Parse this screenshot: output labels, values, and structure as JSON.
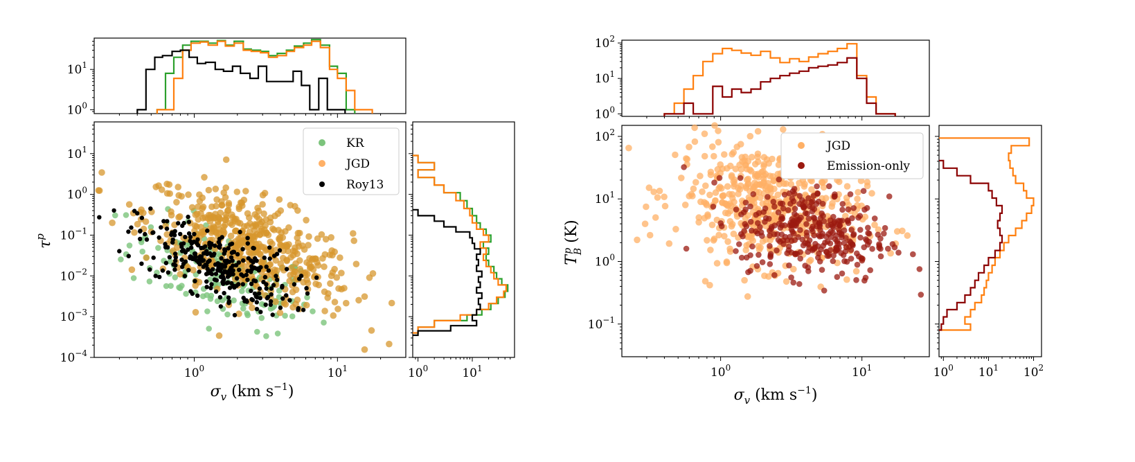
{
  "colors": {
    "KR": "#2ca02c",
    "JGD": "#ff7f0e",
    "Roy13": "#000000",
    "Emission-only": "#8b0000",
    "kr_point": "#7cc47c",
    "jgd_point": "#ffb066",
    "jgd_left_point": "#d7972d",
    "em_point": "#9b1a10"
  },
  "chart_data": [
    {
      "type": "scatter",
      "id": "left",
      "xlabel": "σv (km s⁻¹)",
      "xlabel_parts": {
        "sym": "σ",
        "sub": "v",
        "unit": " (km s",
        "sup": "−1",
        "close": ")"
      },
      "ylabel": "τᵖ",
      "ylabel_parts": {
        "sym": "τ",
        "sup": "p"
      },
      "xlim": [
        0.2,
        30
      ],
      "ylim": [
        0.0001,
        60
      ],
      "x_ticks": [
        {
          "v": 1,
          "label": "10",
          "exp": "0"
        },
        {
          "v": 10,
          "label": "10",
          "exp": "1"
        }
      ],
      "y_ticks": [
        {
          "v": 0.0001,
          "label": "10",
          "exp": "−4"
        },
        {
          "v": 0.001,
          "label": "10",
          "exp": "−3"
        },
        {
          "v": 0.01,
          "label": "10",
          "exp": "−2"
        },
        {
          "v": 0.1,
          "label": "10",
          "exp": "−1"
        },
        {
          "v": 1,
          "label": "10",
          "exp": "0"
        },
        {
          "v": 10,
          "label": "10",
          "exp": "1"
        }
      ],
      "legend_loc": "top-right",
      "legend": [
        "KR",
        "JGD",
        "Roy13"
      ],
      "series": [
        {
          "name": "KR",
          "n": 180,
          "cx": 1.6,
          "cy": 0.01,
          "sx": 0.55,
          "sy": 0.9
        },
        {
          "name": "JGD",
          "n": 520,
          "cx": 2.4,
          "cy": 0.05,
          "sx": 0.6,
          "sy": 1.0
        },
        {
          "name": "Roy13",
          "n": 300,
          "cx": 1.4,
          "cy": 0.02,
          "sx": 0.45,
          "sy": 0.7
        }
      ],
      "top_hist": {
        "ylim": [
          0.8,
          60
        ],
        "y_ticks": [
          {
            "v": 1,
            "label": "10",
            "exp": "0"
          },
          {
            "v": 10,
            "label": "10",
            "exp": "1"
          }
        ],
        "series": [
          {
            "name": "KR",
            "edges": [
              0.55,
              0.63,
              0.72,
              0.83,
              0.95,
              1.1,
              1.25,
              1.45,
              1.65,
              1.9,
              2.2,
              2.5,
              2.9,
              3.3,
              3.8,
              4.4,
              5.0,
              5.8,
              6.6,
              7.6,
              8.8,
              10.0,
              11.5,
              13.2
            ],
            "counts": [
              1,
              8,
              20,
              40,
              50,
              50,
              45,
              52,
              40,
              50,
              32,
              30,
              28,
              22,
              25,
              30,
              38,
              45,
              55,
              40,
              12,
              8,
              1
            ]
          },
          {
            "name": "JGD",
            "edges": [
              0.55,
              0.63,
              0.72,
              0.83,
              0.95,
              1.1,
              1.25,
              1.45,
              1.65,
              1.9,
              2.2,
              2.5,
              2.9,
              3.3,
              3.8,
              4.4,
              5.0,
              5.8,
              6.6,
              7.6,
              8.8,
              10.0,
              11.5,
              13.2,
              15.2,
              17.5
            ],
            "counts": [
              1,
              1,
              6,
              30,
              45,
              48,
              40,
              50,
              38,
              45,
              30,
              28,
              26,
              20,
              22,
              28,
              35,
              40,
              50,
              35,
              10,
              6,
              3,
              1,
              1
            ]
          },
          {
            "name": "Roy13",
            "edges": [
              0.4,
              0.46,
              0.53,
              0.6,
              0.7,
              0.8,
              0.92,
              1.05,
              1.2,
              1.4,
              1.6,
              1.85,
              2.1,
              2.45,
              2.8,
              3.2,
              3.7,
              4.25,
              4.9,
              5.6,
              6.4,
              7.4,
              8.5,
              9.8,
              11.3
            ],
            "counts": [
              1,
              10,
              20,
              22,
              28,
              30,
              20,
              14,
              15,
              10,
              9,
              12,
              8,
              6,
              12,
              5,
              5,
              5,
              9,
              4,
              1,
              6,
              1,
              1
            ]
          }
        ]
      },
      "right_hist": {
        "xlim": [
          0.8,
          60
        ],
        "x_ticks": [
          {
            "v": 1,
            "label": "10",
            "exp": "0"
          },
          {
            "v": 10,
            "label": "10",
            "exp": "1"
          }
        ],
        "series": [
          {
            "name": "KR",
            "edges": [
              0.0004,
              0.00055,
              0.0008,
              0.0011,
              0.0015,
              0.0021,
              0.003,
              0.0042,
              0.006,
              0.0085,
              0.012,
              0.017,
              0.024,
              0.034,
              0.048,
              0.068,
              0.1,
              0.14,
              0.2,
              0.3,
              0.45,
              0.7,
              1.1,
              1.7,
              2.6,
              4,
              6,
              9
            ],
            "counts": [
              1,
              2,
              8,
              15,
              22,
              30,
              40,
              45,
              35,
              28,
              25,
              20,
              18,
              20,
              16,
              22,
              18,
              14,
              12,
              10,
              8,
              6,
              3,
              2,
              1,
              2,
              1
            ]
          },
          {
            "name": "JGD",
            "edges": [
              0.0004,
              0.00055,
              0.0008,
              0.0011,
              0.0015,
              0.0021,
              0.003,
              0.0042,
              0.006,
              0.0085,
              0.012,
              0.017,
              0.024,
              0.034,
              0.048,
              0.068,
              0.1,
              0.14,
              0.2,
              0.3,
              0.45,
              0.7,
              1.1,
              1.7,
              2.6,
              4,
              6,
              9
            ],
            "counts": [
              1,
              2,
              6,
              12,
              20,
              28,
              38,
              42,
              30,
              25,
              22,
              18,
              16,
              18,
              14,
              20,
              16,
              12,
              10,
              9,
              7,
              5,
              3,
              2,
              1,
              2,
              1
            ]
          },
          {
            "name": "Roy13",
            "edges": [
              0.00035,
              0.00045,
              0.0006,
              0.0008,
              0.0011,
              0.0015,
              0.002,
              0.0028,
              0.0038,
              0.0052,
              0.007,
              0.0095,
              0.013,
              0.018,
              0.025,
              0.034,
              0.046,
              0.063,
              0.086,
              0.12,
              0.16,
              0.22,
              0.3,
              0.42
            ],
            "counts": [
              1,
              4,
              12,
              10,
              12,
              14,
              13,
              15,
              12,
              14,
              13,
              15,
              12,
              13,
              12,
              14,
              11,
              10,
              9,
              5,
              3,
              2,
              1
            ]
          }
        ]
      }
    },
    {
      "type": "scatter",
      "id": "right",
      "xlabel": "σv (km s⁻¹)",
      "xlabel_parts": {
        "sym": "σ",
        "sub": "v",
        "unit": " (km s",
        "sup": "−1",
        "close": ")"
      },
      "ylabel": "T_B^p (K)",
      "ylabel_parts": {
        "sym": "T",
        "sub": "B",
        "sup": "p",
        "unit": " (K)"
      },
      "xlim": [
        0.2,
        30
      ],
      "ylim": [
        0.03,
        150
      ],
      "x_ticks": [
        {
          "v": 1,
          "label": "10",
          "exp": "0"
        },
        {
          "v": 10,
          "label": "10",
          "exp": "1"
        }
      ],
      "y_ticks": [
        {
          "v": 0.1,
          "label": "10",
          "exp": "−1"
        },
        {
          "v": 1,
          "label": "10",
          "exp": "0"
        },
        {
          "v": 10,
          "label": "10",
          "exp": "1"
        },
        {
          "v": 100,
          "label": "10",
          "exp": "2"
        }
      ],
      "legend_loc": "top-right",
      "legend": [
        "JGD",
        "Emission-only"
      ],
      "series": [
        {
          "name": "JGD",
          "n": 520,
          "cx": 2.2,
          "cy": 8,
          "sx": 0.55,
          "sy": 0.8
        },
        {
          "name": "Emission-only",
          "n": 330,
          "cx": 4.5,
          "cy": 3,
          "sx": 0.45,
          "sy": 0.6
        }
      ],
      "top_hist": {
        "ylim": [
          0.85,
          120
        ],
        "y_ticks": [
          {
            "v": 1,
            "label": "10",
            "exp": "0"
          },
          {
            "v": 10,
            "label": "10",
            "exp": "1"
          },
          {
            "v": 100,
            "label": "10",
            "exp": "2"
          }
        ],
        "series": [
          {
            "name": "JGD",
            "edges": [
              0.4,
              0.47,
              0.55,
              0.64,
              0.75,
              0.88,
              1.03,
              1.2,
              1.4,
              1.64,
              1.92,
              2.25,
              2.63,
              3.08,
              3.6,
              4.2,
              4.9,
              5.75,
              6.7,
              7.85,
              9.2,
              10.8,
              12.6,
              14.7,
              17.2
            ],
            "counts": [
              1,
              2,
              5,
              12,
              30,
              50,
              70,
              62,
              52,
              45,
              58,
              38,
              28,
              36,
              30,
              40,
              50,
              58,
              70,
              95,
              12,
              3,
              1,
              1
            ]
          },
          {
            "name": "Emission-only",
            "edges": [
              0.4,
              0.47,
              0.55,
              0.64,
              0.75,
              0.88,
              1.03,
              1.2,
              1.4,
              1.64,
              1.92,
              2.25,
              2.63,
              3.08,
              3.6,
              4.2,
              4.9,
              5.75,
              6.7,
              7.85,
              9.2,
              10.8,
              12.6,
              14.7,
              17.2
            ],
            "counts": [
              1,
              1,
              2,
              1,
              1,
              6,
              3,
              5,
              4,
              5,
              8,
              10,
              12,
              14,
              16,
              20,
              22,
              24,
              28,
              38,
              10,
              2,
              1,
              1
            ]
          }
        ]
      },
      "right_hist": {
        "xlim": [
          0.8,
          150
        ],
        "x_ticks": [
          {
            "v": 1,
            "label": "10",
            "exp": "0"
          },
          {
            "v": 10,
            "label": "10",
            "exp": "1"
          },
          {
            "v": 100,
            "label": "10",
            "exp": "2"
          }
        ],
        "series": [
          {
            "name": "JGD",
            "edges": [
              0.08,
              0.1,
              0.13,
              0.17,
              0.22,
              0.29,
              0.38,
              0.5,
              0.66,
              0.87,
              1.15,
              1.5,
              2.0,
              2.6,
              3.4,
              4.5,
              5.9,
              7.8,
              10.3,
              13.5,
              17.8,
              23.5,
              31,
              41,
              54,
              71,
              94
            ],
            "counts": [
              4,
              3,
              4,
              5,
              7,
              8,
              9,
              10,
              12,
              14,
              18,
              22,
              28,
              40,
              55,
              70,
              90,
              100,
              70,
              60,
              40,
              35,
              30,
              28,
              32,
              80
            ]
          },
          {
            "name": "Emission-only",
            "edges": [
              0.08,
              0.1,
              0.13,
              0.17,
              0.22,
              0.29,
              0.38,
              0.5,
              0.66,
              0.87,
              1.15,
              1.5,
              2.0,
              2.6,
              3.4,
              4.5,
              5.9,
              7.8,
              10.3,
              13.5,
              17.8,
              23.5,
              31,
              41
            ],
            "counts": [
              0.9,
              1,
              1.2,
              2,
              3,
              4,
              5,
              6,
              8,
              10,
              14,
              18,
              20,
              18,
              16,
              18,
              20,
              15,
              12,
              10,
              4,
              2,
              1
            ]
          }
        ]
      }
    }
  ]
}
